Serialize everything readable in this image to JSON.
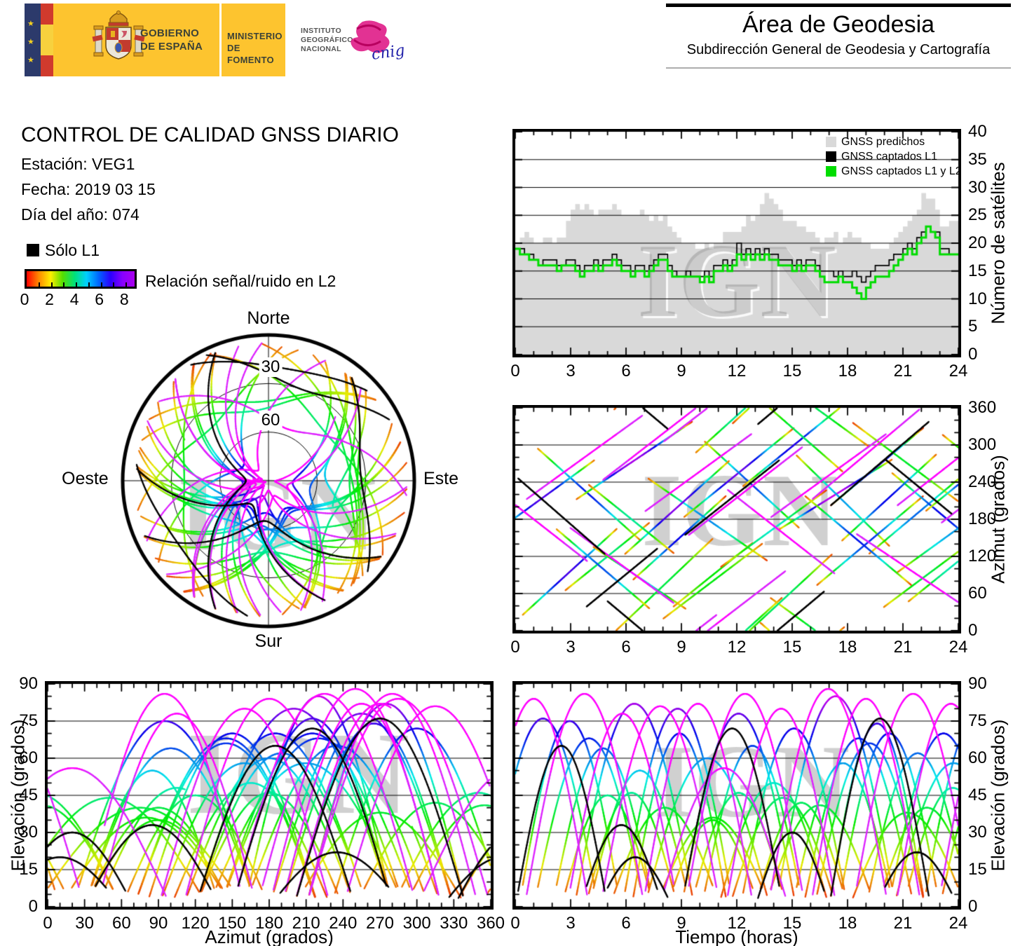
{
  "watermark": "IGN",
  "header": {
    "gobierno_line1": "GOBIERNO",
    "gobierno_line2": "DE ESPAÑA",
    "ministerio_line1": "MINISTERIO",
    "ministerio_line2": "DE FOMENTO",
    "instituto_lines": [
      "INSTITUTO",
      "GEOGRÁFICO",
      "NACIONAL"
    ],
    "cnig_label": "cnig",
    "area_title": "Área de Geodesia",
    "area_subtitle": "Subdirección General de Geodesia y Cartografía"
  },
  "info": {
    "title": "CONTROL DE CALIDAD GNSS DIARIO",
    "station_label": "Estación: VEG1",
    "date_label": "Fecha: 2019 03 15",
    "doy_label": "Día del año: 074"
  },
  "snr_legend": {
    "solo_l1_label": "Sólo L1",
    "colorbar_label": "Relación señal/ruido en L2",
    "colorbar_ticks": [
      "0",
      "2",
      "4",
      "6",
      "8"
    ],
    "colorbar_tick_values": [
      0,
      2,
      4,
      6,
      8
    ],
    "colorbar_range": [
      0,
      9
    ],
    "colorbar_stops": [
      "#ff0000",
      "#ff8800",
      "#ffee00",
      "#55dd00",
      "#00e07a",
      "#00cfff",
      "#0066ff",
      "#2a00ff",
      "#8800ff",
      "#aa00ee"
    ]
  },
  "skyplot": {
    "north": "Norte",
    "south": "Sur",
    "east": "Este",
    "west": "Oeste",
    "ring_labels": [
      "30",
      "60"
    ],
    "ring_elevations": [
      30,
      60
    ]
  },
  "chart_data": [
    {
      "id": "sats",
      "type": "line",
      "ylabel": "Número de satélites",
      "xlim": [
        0,
        24
      ],
      "ylim": [
        0,
        40
      ],
      "xticks": [
        0,
        3,
        6,
        9,
        12,
        15,
        18,
        21,
        24
      ],
      "yticks": [
        0,
        5,
        10,
        15,
        20,
        25,
        30,
        35,
        40
      ],
      "grid_y": [
        5,
        10,
        15,
        20,
        25,
        30,
        35
      ],
      "legend": [
        {
          "label": "GNSS predichos",
          "color": "#d9d9d9"
        },
        {
          "label": "GNSS captados L1",
          "color": "#000000"
        },
        {
          "label": "GNSS captados L1 y L2",
          "color": "#00dd00"
        }
      ],
      "t_start": 0,
      "t_step": 0.25,
      "series": [
        {
          "name": "GNSS predichos",
          "style": "area",
          "color": "#d9d9d9",
          "values": [
            20,
            21,
            22,
            21,
            20,
            20,
            21,
            21,
            20,
            21,
            21,
            24,
            26,
            27,
            26,
            27,
            26,
            25,
            26,
            26,
            26,
            27,
            26,
            25,
            25,
            25,
            25,
            26,
            25,
            24,
            25,
            24,
            25,
            23,
            22,
            21,
            20,
            20,
            20,
            19,
            19,
            20,
            19,
            20,
            20,
            22,
            22,
            22,
            22,
            23,
            25,
            24,
            25,
            27,
            29,
            28,
            27,
            26,
            24,
            24,
            24,
            23,
            23,
            22,
            22,
            21,
            20,
            21,
            21,
            22,
            20,
            21,
            22,
            21,
            21,
            20,
            20,
            19,
            19,
            19,
            19,
            20,
            21,
            22,
            23,
            24,
            25,
            26,
            29,
            28,
            28,
            26,
            23,
            23,
            24,
            24,
            24
          ]
        },
        {
          "name": "GNSS captados L1",
          "style": "step",
          "color": "#000000",
          "values": [
            19,
            19,
            18,
            18,
            17,
            16,
            17,
            17,
            17,
            16,
            16,
            17,
            17,
            16,
            15,
            16,
            16,
            17,
            16,
            17,
            17,
            18,
            17,
            16,
            16,
            15,
            16,
            16,
            15,
            16,
            17,
            18,
            18,
            16,
            15,
            14,
            14,
            15,
            14,
            14,
            14,
            15,
            14,
            16,
            16,
            17,
            16,
            17,
            20,
            18,
            19,
            18,
            19,
            18,
            19,
            18,
            18,
            17,
            17,
            17,
            16,
            17,
            16,
            17,
            17,
            16,
            15,
            15,
            15,
            14,
            15,
            14,
            14,
            15,
            14,
            13,
            14,
            15,
            16,
            16,
            16,
            17,
            18,
            18,
            19,
            20,
            19,
            21,
            22,
            23,
            22,
            22,
            19,
            19,
            18,
            18,
            18
          ]
        },
        {
          "name": "GNSS captados L1 y L2",
          "style": "step",
          "color": "#00dd00",
          "values": [
            19,
            18,
            18,
            17,
            17,
            16,
            16,
            16,
            16,
            15,
            16,
            16,
            16,
            15,
            14,
            15,
            15,
            16,
            15,
            16,
            16,
            17,
            16,
            15,
            15,
            14,
            15,
            15,
            14,
            15,
            16,
            17,
            17,
            15,
            14,
            14,
            14,
            14,
            14,
            14,
            13,
            14,
            13,
            15,
            15,
            16,
            15,
            16,
            18,
            17,
            18,
            17,
            18,
            17,
            18,
            17,
            17,
            16,
            16,
            16,
            15,
            16,
            15,
            16,
            16,
            15,
            14,
            13,
            13,
            13,
            14,
            13,
            13,
            12,
            11,
            10,
            12,
            13,
            14,
            14,
            14,
            15,
            16,
            17,
            18,
            19,
            18,
            20,
            21,
            23,
            22,
            21,
            18,
            18,
            18,
            18,
            18
          ]
        }
      ]
    },
    {
      "id": "skyplot",
      "type": "scatter",
      "rings": [
        30,
        60
      ],
      "tracks_ref": "satellite_tracks"
    },
    {
      "id": "azimut_time",
      "type": "scatter",
      "ylabel": "Azimut (grados)",
      "xlim": [
        0,
        24
      ],
      "ylim": [
        0,
        360
      ],
      "xticks": [
        0,
        3,
        6,
        9,
        12,
        15,
        18,
        21,
        24
      ],
      "yticks": [
        0,
        60,
        120,
        180,
        240,
        300,
        360
      ],
      "grid_y": [
        60,
        120,
        180,
        240,
        300
      ],
      "tracks_ref": "satellite_tracks"
    },
    {
      "id": "elev_az",
      "type": "scatter",
      "xlabel": "Azimut (grados)",
      "ylabel": "Elevación (grados)",
      "xlim": [
        0,
        360
      ],
      "ylim": [
        0,
        90
      ],
      "xticks": [
        0,
        30,
        60,
        90,
        120,
        150,
        180,
        210,
        240,
        270,
        300,
        330,
        360
      ],
      "yticks": [
        0,
        15,
        30,
        45,
        60,
        75,
        90
      ],
      "grid_y": [
        15,
        30,
        45,
        60,
        75
      ],
      "tracks_ref": "satellite_tracks"
    },
    {
      "id": "elev_time",
      "type": "scatter",
      "xlabel": "Tiempo (horas)",
      "ylabel": "Elevación (grados)",
      "xlim": [
        0,
        24
      ],
      "ylim": [
        0,
        90
      ],
      "xticks": [
        0,
        3,
        6,
        9,
        12,
        15,
        18,
        21,
        24
      ],
      "yticks": [
        0,
        15,
        30,
        45,
        60,
        75,
        90
      ],
      "grid_y": [
        15,
        30,
        45,
        60,
        75
      ],
      "tracks_ref": "satellite_tracks"
    }
  ],
  "satellite_tracks": {
    "format": [
      "t_rise_h",
      "duration_h",
      "azimuth_start_deg",
      "azimuth_span_deg",
      "elev_max_deg",
      "color_mode"
    ],
    "color_modes": {
      "0": "snr-colormap",
      "1": "magenta-high-snr",
      "2": "black-solo-L1"
    },
    "list": [
      [
        0.2,
        5.5,
        20,
        150,
        75,
        0
      ],
      [
        1.0,
        6.0,
        300,
        -160,
        68,
        0
      ],
      [
        2.5,
        5.0,
        60,
        120,
        45,
        0
      ],
      [
        3.2,
        6.5,
        210,
        130,
        82,
        0
      ],
      [
        4.0,
        5.5,
        140,
        -110,
        55,
        0
      ],
      [
        5.1,
        6.0,
        350,
        170,
        40,
        0
      ],
      [
        6.3,
        5.2,
        80,
        140,
        70,
        0
      ],
      [
        7.0,
        6.8,
        250,
        -140,
        60,
        0
      ],
      [
        8.2,
        5.0,
        30,
        120,
        35,
        0
      ],
      [
        9.0,
        6.2,
        180,
        150,
        78,
        0
      ],
      [
        10.1,
        5.5,
        310,
        -150,
        65,
        0
      ],
      [
        11.0,
        6.0,
        100,
        130,
        50,
        0
      ],
      [
        12.2,
        5.8,
        230,
        140,
        72,
        0
      ],
      [
        13.0,
        5.0,
        20,
        -130,
        42,
        0
      ],
      [
        14.1,
        6.5,
        160,
        120,
        85,
        0
      ],
      [
        15.0,
        5.5,
        290,
        -160,
        58,
        0
      ],
      [
        16.2,
        6.0,
        70,
        150,
        66,
        0
      ],
      [
        17.0,
        5.2,
        200,
        130,
        74,
        0
      ],
      [
        18.1,
        6.3,
        340,
        -140,
        38,
        0
      ],
      [
        19.0,
        5.6,
        120,
        140,
        62,
        0
      ],
      [
        20.2,
        6.0,
        260,
        -150,
        70,
        0
      ],
      [
        21.0,
        5.4,
        40,
        130,
        48,
        0
      ],
      [
        22.1,
        6.2,
        190,
        150,
        80,
        0
      ],
      [
        23.0,
        5.0,
        320,
        -120,
        55,
        0
      ],
      [
        -1.5,
        6.0,
        150,
        130,
        76,
        0
      ],
      [
        20.5,
        6.5,
        90,
        140,
        58,
        0
      ],
      [
        2.0,
        5.5,
        170,
        -140,
        64,
        0
      ],
      [
        5.8,
        6.0,
        120,
        160,
        80,
        0
      ],
      [
        9.5,
        5.2,
        280,
        140,
        52,
        0
      ],
      [
        13.5,
        6.0,
        60,
        -130,
        60,
        0
      ],
      [
        17.5,
        5.5,
        140,
        150,
        70,
        0
      ],
      [
        3.8,
        5.0,
        240,
        -120,
        46,
        0
      ],
      [
        7.6,
        6.2,
        10,
        140,
        36,
        0
      ],
      [
        11.6,
        5.8,
        330,
        160,
        44,
        0
      ],
      [
        15.6,
        6.0,
        220,
        -150,
        68,
        0
      ],
      [
        19.6,
        5.4,
        30,
        120,
        40,
        0
      ],
      [
        0.5,
        6.5,
        210,
        140,
        86,
        1
      ],
      [
        2.8,
        6.0,
        170,
        -130,
        78,
        1
      ],
      [
        4.6,
        6.5,
        240,
        150,
        88,
        1
      ],
      [
        6.9,
        6.0,
        190,
        130,
        82,
        1
      ],
      [
        9.2,
        6.5,
        150,
        150,
        86,
        1
      ],
      [
        11.4,
        6.0,
        230,
        -140,
        80,
        1
      ],
      [
        13.7,
        6.5,
        180,
        140,
        88,
        1
      ],
      [
        16.0,
        6.0,
        210,
        150,
        84,
        1
      ],
      [
        18.3,
        6.5,
        160,
        -130,
        86,
        1
      ],
      [
        20.6,
        6.0,
        200,
        140,
        82,
        1
      ],
      [
        22.9,
        6.5,
        170,
        150,
        88,
        1
      ],
      [
        -2.0,
        6.0,
        250,
        -140,
        84,
        1
      ],
      [
        7.8,
        7.0,
        300,
        160,
        76,
        1
      ],
      [
        3.5,
        4.5,
        30,
        110,
        33,
        2
      ],
      [
        9.0,
        5.5,
        150,
        130,
        72,
        2
      ],
      [
        17.0,
        5.5,
        200,
        140,
        76,
        2
      ],
      [
        4.5,
        4.0,
        60,
        -100,
        20,
        2
      ],
      [
        19.5,
        4.5,
        290,
        -110,
        22,
        2
      ],
      [
        13.0,
        4.0,
        330,
        100,
        30,
        2
      ],
      [
        0.0,
        5.0,
        250,
        -130,
        65,
        2
      ]
    ]
  }
}
